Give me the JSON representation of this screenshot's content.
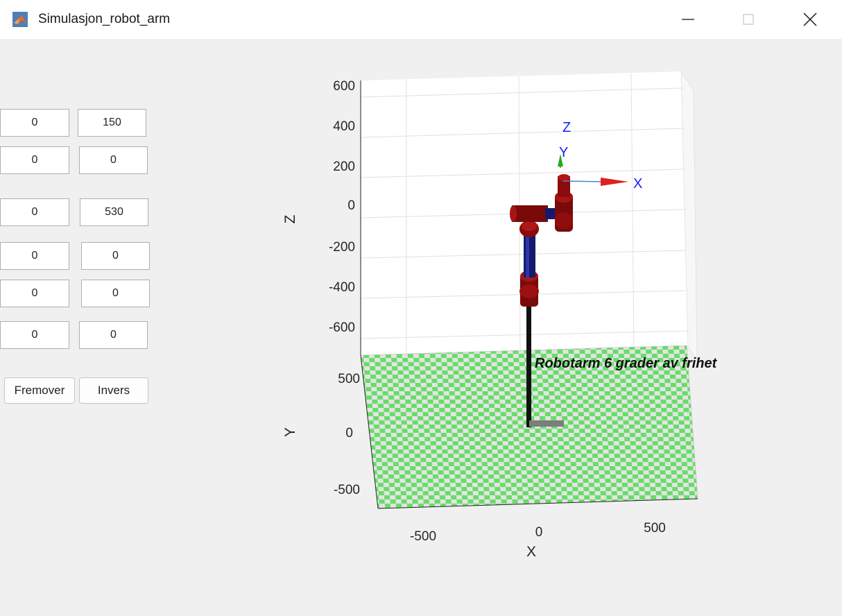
{
  "window": {
    "title": "Simulasjon_robot_arm",
    "controls": {
      "minimize": "—",
      "close": "✕"
    },
    "icons": [
      "matlab-logo-icon",
      "minimize-icon",
      "maximize-icon",
      "close-icon"
    ]
  },
  "inputs": [
    [
      "0",
      "150"
    ],
    [
      "0",
      "0"
    ],
    [
      "0",
      "530"
    ],
    [
      "0",
      "0"
    ],
    [
      "0",
      "0"
    ],
    [
      "0",
      "0"
    ]
  ],
  "buttons": {
    "forward": "Fremover",
    "inverse": "Invers"
  },
  "axes": {
    "z_ticks": [
      "600",
      "400",
      "200",
      "0",
      "-200",
      "-400",
      "-600"
    ],
    "y_ticks": [
      "500",
      "0",
      "-500"
    ],
    "x_ticks": [
      "-500",
      "0",
      "500"
    ],
    "x_label": "X",
    "y_label": "Y",
    "z_label": "Z",
    "grid": true
  },
  "frame_labels": {
    "x": "X",
    "y": "Y",
    "z": "Z"
  },
  "annotation": "Robotarm 6 grader av frihet",
  "colors": {
    "floor_green": "#66dd66",
    "floor_light": "#e4e4e4",
    "link_blue": "#1a237e",
    "joint_red": "#8b0000",
    "axis_arrow_red": "#e02020",
    "label_blue": "#1a1aff"
  }
}
